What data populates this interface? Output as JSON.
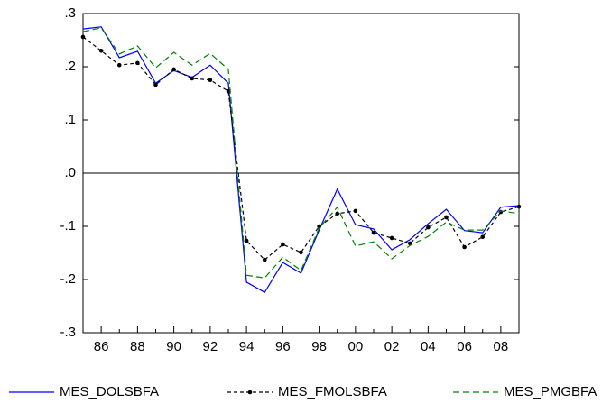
{
  "chart_data": {
    "type": "line",
    "categories": [
      null,
      "86",
      null,
      "88",
      null,
      "90",
      null,
      "92",
      null,
      "94",
      null,
      "96",
      null,
      "98",
      null,
      "00",
      null,
      "02",
      null,
      "04",
      null,
      "06",
      null,
      "08",
      null
    ],
    "series": [
      {
        "name": "MES_DOLSBFA",
        "color": "#0000ff",
        "dash": "none",
        "marker": false,
        "values": [
          0.271,
          0.275,
          0.217,
          0.229,
          0.169,
          0.193,
          0.18,
          0.203,
          0.169,
          -0.205,
          -0.224,
          -0.168,
          -0.188,
          -0.107,
          -0.03,
          -0.097,
          -0.105,
          -0.144,
          -0.125,
          -0.095,
          -0.068,
          -0.108,
          -0.112,
          -0.064,
          -0.061
        ]
      },
      {
        "name": "MES_FMOLSBFA",
        "color": "#000000",
        "dash": "4,3",
        "marker": true,
        "values": [
          0.256,
          0.23,
          0.203,
          0.207,
          0.166,
          0.195,
          0.178,
          0.175,
          0.154,
          -0.127,
          -0.163,
          -0.134,
          -0.149,
          -0.1,
          -0.076,
          -0.071,
          -0.112,
          -0.122,
          -0.132,
          -0.102,
          -0.083,
          -0.139,
          -0.12,
          -0.073,
          -0.063
        ]
      },
      {
        "name": "MES_PMGBFA",
        "color": "#008000",
        "dash": "7,4",
        "marker": false,
        "values": [
          0.266,
          0.273,
          0.224,
          0.239,
          0.198,
          0.227,
          0.203,
          0.225,
          0.195,
          -0.192,
          -0.197,
          -0.158,
          -0.183,
          -0.103,
          -0.064,
          -0.137,
          -0.129,
          -0.161,
          -0.136,
          -0.119,
          -0.092,
          -0.107,
          -0.107,
          -0.071,
          -0.076
        ]
      }
    ],
    "ylim": [
      -0.3,
      0.3
    ],
    "yticks": [
      {
        "value": -0.3,
        "label": "-.3"
      },
      {
        "value": -0.2,
        "label": "-.2"
      },
      {
        "value": -0.1,
        "label": "-.1"
      },
      {
        "value": 0,
        "label": ".0"
      },
      {
        "value": 0.1,
        "label": ".1"
      },
      {
        "value": 0.2,
        "label": ".2"
      },
      {
        "value": 0.3,
        "label": ".3"
      }
    ],
    "zero_line": true,
    "grid": false,
    "legend": "bottom"
  }
}
